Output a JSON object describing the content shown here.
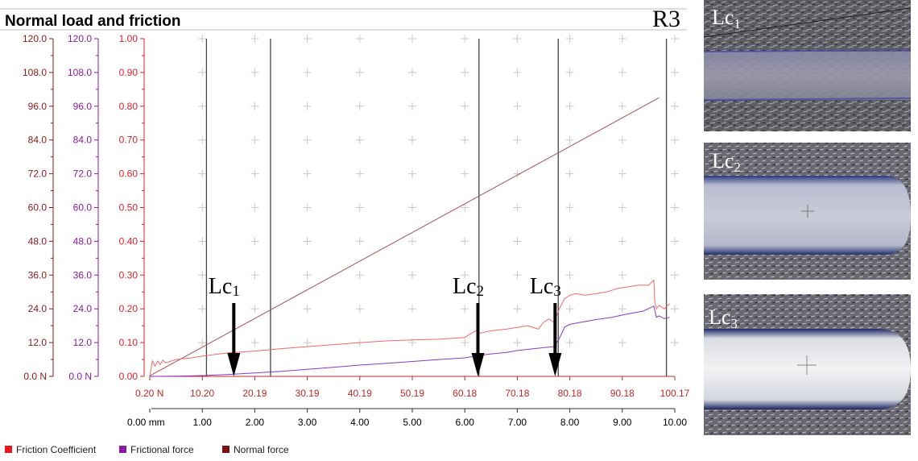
{
  "chart_data": {
    "type": "line",
    "title": "Normal load and friction",
    "sample_label": "R3",
    "axes": {
      "normal_force": {
        "ticks": [
          "0.0 N",
          "12.0",
          "24.0",
          "36.0",
          "48.0",
          "60.0",
          "72.0",
          "84.0",
          "96.0",
          "108.0",
          "120.0"
        ],
        "range": [
          0,
          120
        ],
        "color": "#8b1a1a"
      },
      "frictional_force": {
        "ticks": [
          "0.0 N",
          "12.0",
          "24.0",
          "36.0",
          "48.0",
          "60.0",
          "72.0",
          "84.0",
          "96.0",
          "108.0",
          "120.0"
        ],
        "range": [
          0,
          120
        ],
        "color": "#8b1aa0"
      },
      "friction_coefficient": {
        "ticks": [
          "0.00",
          "0.10",
          "0.20",
          "0.30",
          "0.40",
          "0.50",
          "0.60",
          "0.70",
          "0.80",
          "0.90",
          "1.00"
        ],
        "range": [
          0,
          1
        ],
        "color": "#e0202a"
      },
      "x_load": {
        "ticks": [
          "0.20 N",
          "10.20",
          "20.19",
          "30.19",
          "40.19",
          "50.19",
          "60.18",
          "70.18",
          "80.18",
          "90.18",
          "100.17"
        ],
        "color": "#c0282a"
      },
      "x_distance": {
        "ticks": [
          "0.00 mm",
          "1.00",
          "2.00",
          "3.00",
          "4.00",
          "5.00",
          "6.00",
          "7.00",
          "8.00",
          "9.00",
          "10.00"
        ],
        "range": [
          0,
          10
        ],
        "color": "#000000"
      }
    },
    "grid": "plus-marks",
    "series": [
      {
        "name": "Normal force",
        "color": "#a85050",
        "x": [
          0,
          9.7
        ],
        "y": [
          0.2,
          99.0
        ]
      },
      {
        "name": "Friction Coefficient",
        "color": "#f06a6a",
        "x": [
          0,
          0.05,
          0.1,
          0.15,
          0.2,
          0.25,
          0.3,
          0.4,
          0.5,
          0.6,
          0.8,
          1.0,
          1.5,
          2.0,
          2.5,
          3.0,
          3.5,
          4.0,
          4.5,
          5.0,
          5.5,
          6.0,
          6.1,
          6.2,
          6.3,
          6.5,
          6.8,
          7.0,
          7.2,
          7.4,
          7.5,
          7.6,
          7.7,
          7.8,
          7.9,
          8.0,
          8.1,
          8.3,
          8.5,
          8.7,
          8.9,
          9.1,
          9.3,
          9.5,
          9.6,
          9.62,
          9.65,
          9.7,
          9.8,
          9.9
        ],
        "y": [
          0.0,
          0.045,
          0.03,
          0.045,
          0.035,
          0.048,
          0.04,
          0.045,
          0.05,
          0.052,
          0.055,
          0.06,
          0.07,
          0.075,
          0.082,
          0.088,
          0.094,
          0.1,
          0.105,
          0.108,
          0.11,
          0.115,
          0.125,
          0.135,
          0.128,
          0.135,
          0.14,
          0.145,
          0.15,
          0.14,
          0.16,
          0.17,
          0.16,
          0.2,
          0.23,
          0.24,
          0.245,
          0.24,
          0.245,
          0.25,
          0.26,
          0.265,
          0.27,
          0.27,
          0.285,
          0.22,
          0.2,
          0.21,
          0.2,
          0.215
        ]
      },
      {
        "name": "Frictional force",
        "color": "#8a3ac0",
        "x": [
          0,
          0.5,
          1.0,
          1.5,
          2.0,
          2.5,
          3.0,
          3.5,
          4.0,
          4.5,
          5.0,
          5.5,
          6.0,
          6.3,
          6.5,
          6.8,
          7.0,
          7.3,
          7.5,
          7.7,
          7.8,
          7.9,
          8.0,
          8.2,
          8.5,
          8.8,
          9.0,
          9.2,
          9.4,
          9.6,
          9.65,
          9.7,
          9.8,
          9.9
        ],
        "y": [
          0,
          0.1,
          0.3,
          0.7,
          1.2,
          1.8,
          2.5,
          3.2,
          4.0,
          4.6,
          5.3,
          6.0,
          6.6,
          7.5,
          8.0,
          8.5,
          9.2,
          9.8,
          10.2,
          10.6,
          13.5,
          17.5,
          18.5,
          19.2,
          20.2,
          21.0,
          21.8,
          22.5,
          23.2,
          25.0,
          21.0,
          21.5,
          20.5,
          21.0
        ]
      }
    ],
    "markers": [
      {
        "label": "Lc",
        "sub": "1",
        "x_mm": 1.6
      },
      {
        "label": "Lc",
        "sub": "2",
        "x_mm": 6.25
      },
      {
        "label": "Lc",
        "sub": "3",
        "x_mm": 7.72
      }
    ],
    "vertical_lines_mm": [
      1.08,
      2.3,
      6.27,
      7.78,
      9.84
    ],
    "legend": {
      "placement": "bottom-left",
      "entries": [
        {
          "name": "Friction Coefficient",
          "color": "#e8141e"
        },
        {
          "name": "Frictional force",
          "color": "#8b1aa0"
        },
        {
          "name": "Normal force",
          "color": "#7a1010"
        }
      ]
    }
  },
  "photos": [
    {
      "label": "Lc",
      "sub": "1",
      "scale_note": ""
    },
    {
      "label": "Lc",
      "sub": "2",
      "scale_note": ""
    },
    {
      "label": "Lc",
      "sub": "3",
      "scale_note": ""
    }
  ]
}
